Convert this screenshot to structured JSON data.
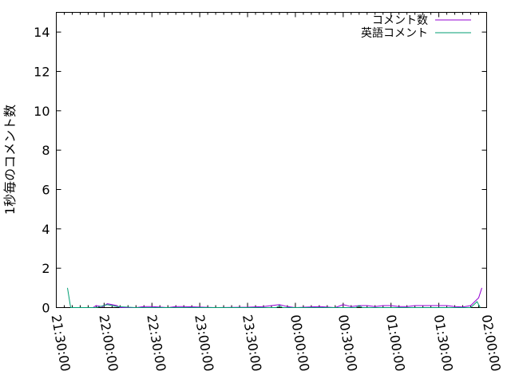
{
  "chart_data": {
    "type": "line",
    "title": "",
    "xlabel": "",
    "ylabel": "1秒毎のコメント数",
    "xlim": [
      "21:30:00",
      "02:00:00"
    ],
    "ylim": [
      0,
      15
    ],
    "xticks": [
      "21:30:00",
      "22:00:00",
      "22:30:00",
      "23:00:00",
      "23:30:00",
      "00:00:00",
      "00:30:00",
      "01:00:00",
      "01:30:00",
      "02:00:00"
    ],
    "yticks": [
      "0",
      "2",
      "4",
      "6",
      "8",
      "10",
      "12",
      "14"
    ],
    "grid": false,
    "legend": "top-right",
    "series": [
      {
        "name": "コメント数",
        "color": "#9400d3",
        "points": [
          [
            "21:44",
            0
          ],
          [
            "21:53",
            0
          ],
          [
            "21:55",
            0.1
          ],
          [
            "21:59",
            0.05
          ],
          [
            "22:02",
            0.2
          ],
          [
            "22:05",
            0.15
          ],
          [
            "22:08",
            0.1
          ],
          [
            "22:10",
            0
          ],
          [
            "22:20",
            0
          ],
          [
            "22:25",
            0.05
          ],
          [
            "22:30",
            0.05
          ],
          [
            "22:40",
            0
          ],
          [
            "22:45",
            0.05
          ],
          [
            "22:50",
            0.05
          ],
          [
            "23:10",
            0
          ],
          [
            "23:30",
            0.02
          ],
          [
            "23:40",
            0.05
          ],
          [
            "23:45",
            0.1
          ],
          [
            "23:50",
            0.15
          ],
          [
            "23:55",
            0.05
          ],
          [
            "00:00",
            0
          ],
          [
            "00:15",
            0.05
          ],
          [
            "00:25",
            0
          ],
          [
            "00:30",
            0.15
          ],
          [
            "00:35",
            0.05
          ],
          [
            "00:40",
            0.1
          ],
          [
            "00:45",
            0.1
          ],
          [
            "00:50",
            0.05
          ],
          [
            "00:55",
            0.1
          ],
          [
            "01:00",
            0.1
          ],
          [
            "01:05",
            0.05
          ],
          [
            "01:10",
            0.05
          ],
          [
            "01:15",
            0.1
          ],
          [
            "01:25",
            0.1
          ],
          [
            "01:35",
            0.1
          ],
          [
            "01:40",
            0.05
          ],
          [
            "01:45",
            0.03
          ],
          [
            "01:50",
            0.1
          ],
          [
            "01:55",
            0.5
          ],
          [
            "01:57",
            1.0
          ]
        ]
      },
      {
        "name": "英語コメント",
        "color": "#009e73",
        "points": [
          [
            "21:37",
            1.0
          ],
          [
            "21:39",
            0
          ],
          [
            "21:55",
            0
          ],
          [
            "22:02",
            0.15
          ],
          [
            "22:05",
            0.1
          ],
          [
            "22:08",
            0.05
          ],
          [
            "22:20",
            0
          ],
          [
            "23:48",
            0
          ],
          [
            "23:50",
            0.1
          ],
          [
            "23:52",
            0
          ],
          [
            "00:38",
            0
          ],
          [
            "00:40",
            0.1
          ],
          [
            "00:42",
            0
          ],
          [
            "01:50",
            0
          ],
          [
            "01:54",
            0.3
          ],
          [
            "01:56",
            0
          ]
        ]
      }
    ]
  }
}
